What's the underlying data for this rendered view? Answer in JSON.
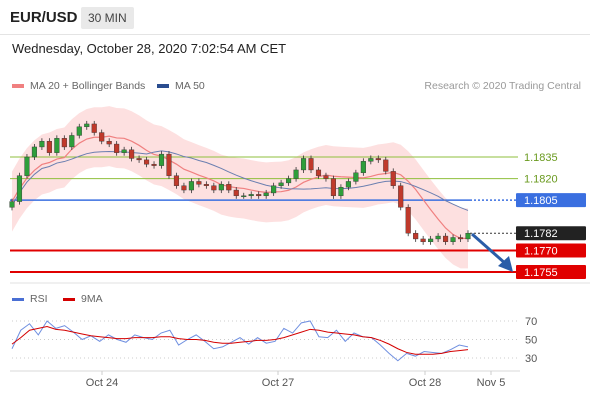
{
  "header": {
    "symbol": "EUR/USD",
    "timeframe": "30 MIN"
  },
  "timestamp": "Wednesday, October 28, 2020 7:02:54 AM CET",
  "legend": {
    "ma20": {
      "label": "MA 20 + Bollinger Bands",
      "color": "#f08080"
    },
    "ma50": {
      "label": "MA 50",
      "color": "#2a4d8f"
    },
    "credit": "Research © 2020 Trading Central"
  },
  "rsi_legend": {
    "rsi": {
      "label": "RSI",
      "color": "#4a6fd4"
    },
    "ma9": {
      "label": "9MA",
      "color": "#d40000"
    }
  },
  "chart_data": [
    {
      "type": "line",
      "title": "",
      "x_labels": [
        "Oct 24",
        "Oct 27",
        "Oct 28",
        "Nov 5"
      ],
      "levels": [
        {
          "label": "1.1835",
          "value": 1.1835,
          "color": "#8fbf3c",
          "kind": "resistance"
        },
        {
          "label": "1.1820",
          "value": 1.182,
          "color": "#8fbf3c",
          "kind": "resistance"
        },
        {
          "label": "1.1805",
          "value": 1.1805,
          "color": "#3a6fe0",
          "kind": "pivot"
        },
        {
          "label": "1.1782",
          "value": 1.1782,
          "color": "#222222",
          "kind": "last-price"
        },
        {
          "label": "1.1770",
          "value": 1.177,
          "color": "#e00000",
          "kind": "support"
        },
        {
          "label": "1.1755",
          "value": 1.1755,
          "color": "#e00000",
          "kind": "support"
        }
      ],
      "price": [
        1.1804,
        1.1822,
        1.1835,
        1.1842,
        1.1846,
        1.1838,
        1.1848,
        1.1842,
        1.185,
        1.1856,
        1.1858,
        1.1852,
        1.1846,
        1.1844,
        1.1838,
        1.184,
        1.1834,
        1.1833,
        1.183,
        1.1829,
        1.1837,
        1.1822,
        1.1815,
        1.1812,
        1.1818,
        1.1816,
        1.1815,
        1.1812,
        1.1816,
        1.1812,
        1.1808,
        1.1808,
        1.1809,
        1.1808,
        1.181,
        1.1815,
        1.1817,
        1.182,
        1.1826,
        1.1834,
        1.1826,
        1.1822,
        1.182,
        1.1808,
        1.1814,
        1.1818,
        1.1824,
        1.1832,
        1.1834,
        1.1833,
        1.1825,
        1.1815,
        1.18,
        1.1782,
        1.1778,
        1.1776,
        1.1778,
        1.178,
        1.1776,
        1.1779,
        1.1778,
        1.1782
      ]
    },
    {
      "type": "line",
      "title": "",
      "series_names": [
        "RSI",
        "9MA"
      ],
      "ylim": [
        20,
        80
      ],
      "ticks": [
        "70",
        "50",
        "30"
      ],
      "rsi": [
        40,
        60,
        67,
        55,
        70,
        62,
        65,
        58,
        50,
        54,
        48,
        55,
        50,
        47,
        55,
        52,
        50,
        57,
        60,
        44,
        50,
        55,
        48,
        40,
        42,
        47,
        52,
        45,
        52,
        46,
        48,
        62,
        57,
        68,
        70,
        53,
        52,
        60,
        48,
        57,
        53,
        52,
        44,
        35,
        27,
        35,
        32,
        37,
        36,
        35,
        39,
        44,
        42
      ],
      "ma9": [
        45,
        52,
        60,
        62,
        64,
        61,
        60,
        58,
        56,
        54,
        53,
        52,
        51,
        51,
        52,
        52,
        52,
        53,
        53,
        51,
        50,
        50,
        49,
        47,
        46,
        46,
        47,
        48,
        49,
        49,
        50,
        52,
        55,
        58,
        61,
        60,
        58,
        57,
        56,
        55,
        53,
        52,
        49,
        45,
        40,
        36,
        34,
        34,
        34,
        35,
        37,
        38,
        39
      ]
    }
  ]
}
